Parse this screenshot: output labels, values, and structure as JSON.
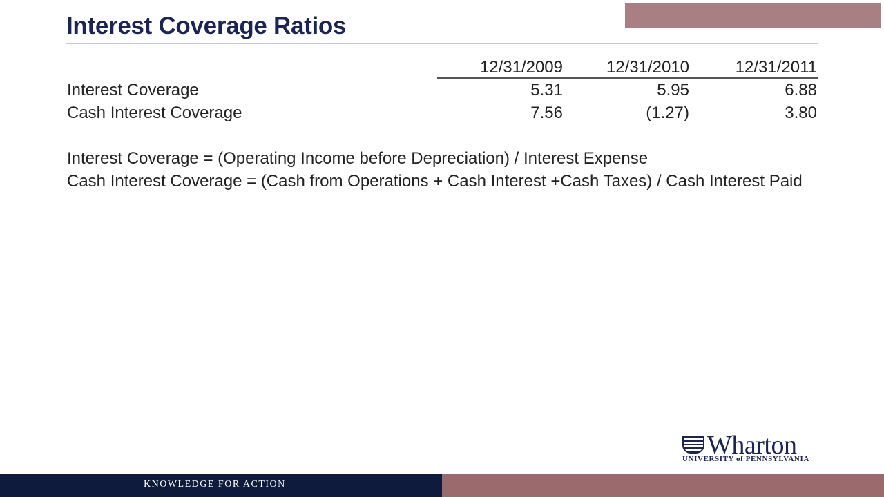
{
  "slide": {
    "title": "Interest Coverage Ratios"
  },
  "table": {
    "columns": [
      "12/31/2009",
      "12/31/2010",
      "12/31/2011"
    ],
    "rows": [
      {
        "label": "Interest Coverage",
        "values": [
          "5.31",
          "5.95",
          "6.88"
        ]
      },
      {
        "label": "Cash Interest Coverage",
        "values": [
          "7.56",
          "(1.27)",
          "3.80"
        ]
      }
    ]
  },
  "formulas": [
    "Interest Coverage = (Operating Income before Depreciation) / Interest Expense",
    "Cash Interest Coverage = (Cash from Operations + Cash Interest +Cash Taxes) / Cash Interest Paid"
  ],
  "logo": {
    "name": "Wharton",
    "subtitle": "UNIVERSITY of PENNSYLVANIA",
    "icon": "penn-shield-icon"
  },
  "footer": {
    "tagline": "KNOWLEDGE FOR ACTION"
  },
  "colors": {
    "title": "#1c2454",
    "footer_navy": "#0f1b3d",
    "footer_maroon": "#9b6a6d",
    "accent_bar": "#a87f82"
  }
}
